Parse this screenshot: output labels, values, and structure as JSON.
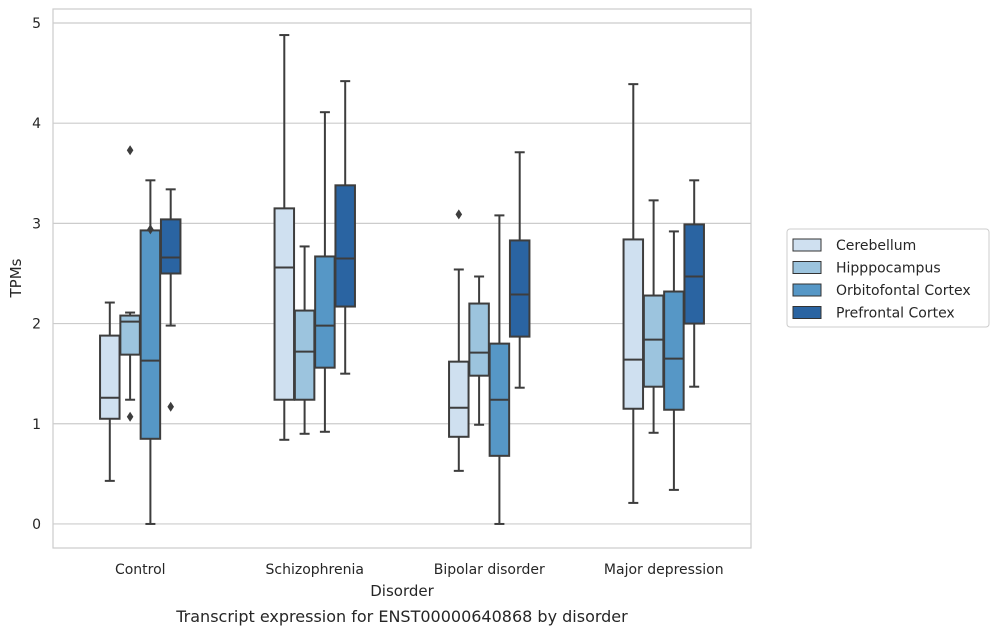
{
  "chart_data": {
    "type": "boxplot",
    "title": "",
    "caption": "Transcript expression for ENST00000640868 by disorder",
    "xlabel": "Disorder",
    "ylabel": "TPMs",
    "ylim": [
      -0.24,
      5.14
    ],
    "yticks": [
      0,
      1,
      2,
      3,
      4,
      5
    ],
    "grid": "horizontal",
    "legend_position": "right-center",
    "categories": [
      "Control",
      "Schizophrenia",
      "Bipolar disorder",
      "Major depression"
    ],
    "series": [
      {
        "name": "Cerebellum",
        "color": "#cfe0f0",
        "boxes": [
          {
            "whisker_low": 0.43,
            "q1": 1.05,
            "median": 1.26,
            "q3": 1.88,
            "whisker_high": 2.21,
            "outliers": []
          },
          {
            "whisker_low": 0.84,
            "q1": 1.24,
            "median": 2.56,
            "q3": 3.15,
            "whisker_high": 4.88,
            "outliers": []
          },
          {
            "whisker_low": 0.53,
            "q1": 0.87,
            "median": 1.16,
            "q3": 1.62,
            "whisker_high": 2.54,
            "outliers": [
              3.09
            ]
          },
          {
            "whisker_low": 0.21,
            "q1": 1.15,
            "median": 1.64,
            "q3": 2.84,
            "whisker_high": 4.39,
            "outliers": []
          }
        ]
      },
      {
        "name": "Hipppocampus",
        "color": "#9cc4de",
        "boxes": [
          {
            "whisker_low": 1.24,
            "q1": 1.69,
            "median": 2.02,
            "q3": 2.08,
            "whisker_high": 2.11,
            "outliers": [
              3.73,
              1.07
            ]
          },
          {
            "whisker_low": 0.9,
            "q1": 1.24,
            "median": 1.72,
            "q3": 2.13,
            "whisker_high": 2.77,
            "outliers": []
          },
          {
            "whisker_low": 0.99,
            "q1": 1.48,
            "median": 1.71,
            "q3": 2.2,
            "whisker_high": 2.47,
            "outliers": []
          },
          {
            "whisker_low": 0.91,
            "q1": 1.37,
            "median": 1.84,
            "q3": 2.28,
            "whisker_high": 3.23,
            "outliers": []
          }
        ]
      },
      {
        "name": "Orbitofontal Cortex",
        "color": "#5697c6",
        "boxes": [
          {
            "whisker_low": 0.0,
            "q1": 0.85,
            "median": 1.63,
            "q3": 2.93,
            "whisker_high": 3.43,
            "outliers": [
              2.94
            ]
          },
          {
            "whisker_low": 0.92,
            "q1": 1.56,
            "median": 1.98,
            "q3": 2.67,
            "whisker_high": 4.11,
            "outliers": []
          },
          {
            "whisker_low": 0.0,
            "q1": 0.68,
            "median": 1.24,
            "q3": 1.8,
            "whisker_high": 3.08,
            "outliers": []
          },
          {
            "whisker_low": 0.34,
            "q1": 1.14,
            "median": 1.65,
            "q3": 2.32,
            "whisker_high": 2.92,
            "outliers": []
          }
        ]
      },
      {
        "name": "Prefrontal Cortex",
        "color": "#2a64a2",
        "boxes": [
          {
            "whisker_low": 1.98,
            "q1": 2.5,
            "median": 2.66,
            "q3": 3.04,
            "whisker_high": 3.34,
            "outliers": [
              1.17
            ]
          },
          {
            "whisker_low": 1.5,
            "q1": 2.17,
            "median": 2.65,
            "q3": 3.38,
            "whisker_high": 4.42,
            "outliers": []
          },
          {
            "whisker_low": 1.36,
            "q1": 1.87,
            "median": 2.29,
            "q3": 2.83,
            "whisker_high": 3.71,
            "outliers": []
          },
          {
            "whisker_low": 1.37,
            "q1": 2.0,
            "median": 2.47,
            "q3": 2.99,
            "whisker_high": 3.43,
            "outliers": []
          }
        ]
      }
    ]
  }
}
